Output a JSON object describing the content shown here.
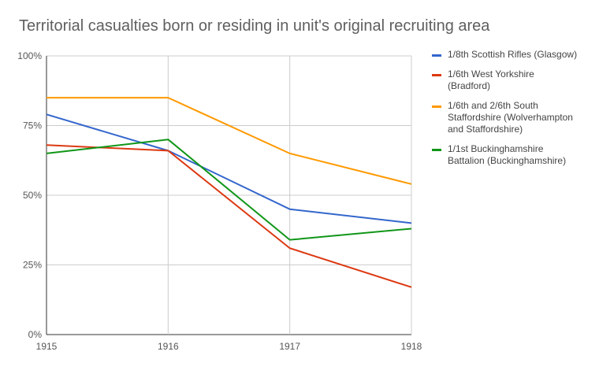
{
  "chart_data": {
    "type": "line",
    "title": "Territorial casualties born or residing in unit's original recruiting area",
    "xlabel": "",
    "ylabel": "",
    "x": [
      "1915",
      "1916",
      "1917",
      "1918"
    ],
    "y_ticks": [
      "0%",
      "25%",
      "50%",
      "75%",
      "100%"
    ],
    "ylim": [
      0,
      100
    ],
    "grid": true,
    "legend_position": "right",
    "series": [
      {
        "name": "1/8th Scottish Rifles (Glasgow)",
        "color": "#3366cc",
        "values": [
          79,
          66,
          45,
          40
        ]
      },
      {
        "name": "1/6th West Yorkshire (Bradford)",
        "color": "#dc3912",
        "values": [
          68,
          66,
          31,
          17
        ]
      },
      {
        "name": "1/6th and 2/6th South Staffordshire (Wolverhampton and Staffordshire)",
        "color": "#ff9900",
        "values": [
          85,
          85,
          65,
          54
        ]
      },
      {
        "name": "1/1st Buckinghamshire Battalion (Buckinghamshire)",
        "color": "#109618",
        "values": [
          65,
          70,
          34,
          38
        ]
      }
    ]
  },
  "legend": {
    "items": [
      [
        "1/8th Scottish Rifles (Glasgow)"
      ],
      [
        "1/6th West Yorkshire",
        "(Bradford)"
      ],
      [
        "1/6th and 2/6th South",
        "Staffordshire (Wolverhampton",
        "and Staffordshire)"
      ],
      [
        "1/1st Buckinghamshire",
        "Battalion (Buckinghamshire)"
      ]
    ]
  }
}
